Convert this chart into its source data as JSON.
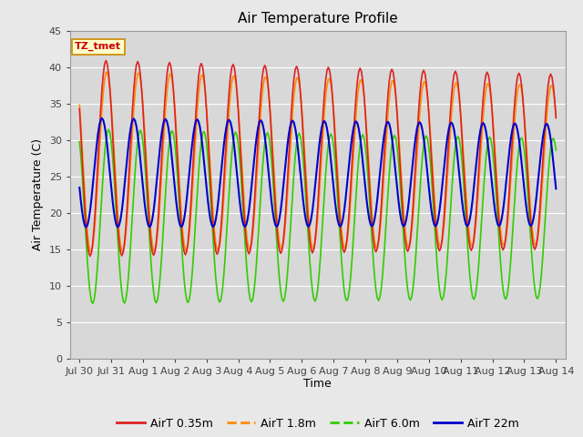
{
  "title": "Air Temperature Profile",
  "xlabel": "Time",
  "ylabel": "Air Temperature (C)",
  "ylim": [
    0,
    45
  ],
  "background_color": "#e8e8e8",
  "plot_bg_color": "#d8d8d8",
  "grid_color": "#ffffff",
  "colors": {
    "AirT 0.35m": "#dd2222",
    "AirT 1.8m": "#ff8c00",
    "AirT 6.0m": "#33cc00",
    "AirT 22m": "#0000cc"
  },
  "annotation_box": {
    "text": "TZ_tmet",
    "facecolor": "#ffffcc",
    "edgecolor": "#cc8800",
    "textcolor": "#cc0000"
  },
  "x_tick_labels": [
    "Jul 30",
    "Jul 31",
    "Aug 1",
    "Aug 2",
    "Aug 3",
    "Aug 4",
    "Aug 5",
    "Aug 6",
    "Aug 7",
    "Aug 8",
    "Aug 9",
    "Aug 10",
    "Aug 11",
    "Aug 12",
    "Aug 13",
    "Aug 14"
  ],
  "y_tick_labels": [
    "0",
    "5",
    "10",
    "15",
    "20",
    "25",
    "30",
    "35",
    "40",
    "45"
  ],
  "y_ticks": [
    0,
    5,
    10,
    15,
    20,
    25,
    30,
    35,
    40,
    45
  ],
  "legend_labels": [
    "AirT 0.35m",
    "AirT 1.8m",
    "AirT 6.0m",
    "AirT 22m"
  ]
}
